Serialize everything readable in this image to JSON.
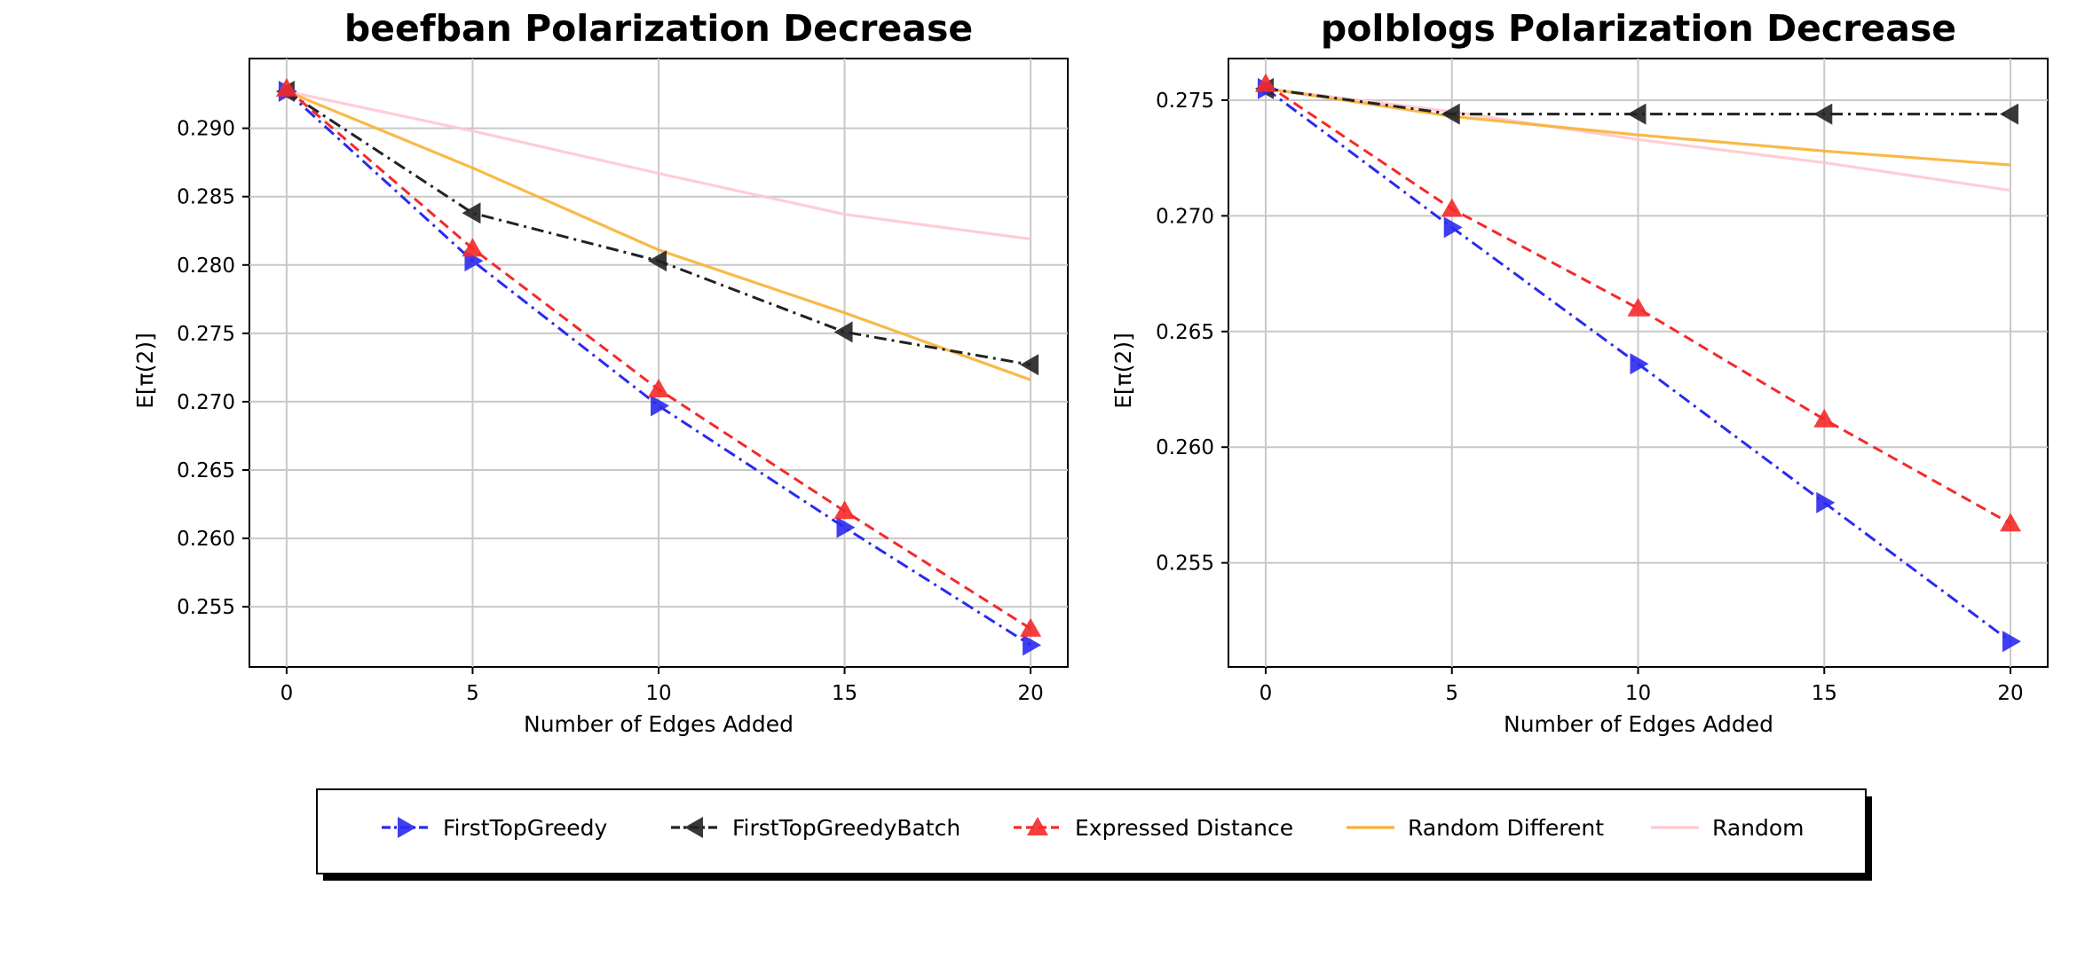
{
  "chart_data": [
    {
      "type": "line",
      "title": "beefban Polarization Decrease",
      "xlabel": "Number of Edges Added",
      "ylabel": "E[π(2)]",
      "xlim": [
        -1,
        21
      ],
      "ylim": [
        0.2506,
        0.2951
      ],
      "xticks": [
        0,
        5,
        10,
        15,
        20
      ],
      "yticks": [
        0.255,
        0.26,
        0.265,
        0.27,
        0.275,
        0.28,
        0.285,
        0.29
      ],
      "ytick_labels": [
        "0.255",
        "0.260",
        "0.265",
        "0.270",
        "0.275",
        "0.280",
        "0.285",
        "0.290"
      ],
      "grid": true,
      "series": [
        {
          "name": "Random",
          "x": [
            0,
            5,
            10,
            15,
            20
          ],
          "values": [
            0.2927,
            0.2898,
            0.2867,
            0.2837,
            0.2819
          ]
        },
        {
          "name": "Random Different",
          "x": [
            0,
            5,
            10,
            15,
            20
          ],
          "values": [
            0.2927,
            0.2871,
            0.2811,
            0.2765,
            0.2716
          ]
        },
        {
          "name": "FirstTopGreedyBatch",
          "x": [
            0,
            5,
            10,
            15,
            20
          ],
          "values": [
            0.2927,
            0.2838,
            0.2803,
            0.2751,
            0.2727
          ]
        },
        {
          "name": "FirstTopGreedy",
          "x": [
            0,
            5,
            10,
            15,
            20
          ],
          "values": [
            0.2927,
            0.2803,
            0.2697,
            0.2608,
            0.2522
          ]
        },
        {
          "name": "Expressed Distance",
          "x": [
            0,
            5,
            10,
            15,
            20
          ],
          "values": [
            0.2929,
            0.2812,
            0.2709,
            0.262,
            0.2534
          ]
        }
      ]
    },
    {
      "type": "line",
      "title": "polblogs Polarization Decrease",
      "xlabel": "Number of Edges Added",
      "ylabel": "E[π(2)]",
      "xlim": [
        -1,
        21
      ],
      "ylim": [
        0.2505,
        0.2768
      ],
      "xticks": [
        0,
        5,
        10,
        15,
        20
      ],
      "yticks": [
        0.255,
        0.26,
        0.265,
        0.27,
        0.275
      ],
      "ytick_labels": [
        "0.255",
        "0.260",
        "0.265",
        "0.270",
        "0.275"
      ],
      "grid": true,
      "series": [
        {
          "name": "Random",
          "x": [
            0,
            5,
            10,
            15,
            20
          ],
          "values": [
            0.2755,
            0.2745,
            0.2733,
            0.2723,
            0.2711
          ]
        },
        {
          "name": "Random Different",
          "x": [
            0,
            5,
            10,
            15,
            20
          ],
          "values": [
            0.2755,
            0.2743,
            0.2735,
            0.2728,
            0.2722
          ]
        },
        {
          "name": "FirstTopGreedyBatch",
          "x": [
            0,
            5,
            10,
            15,
            20
          ],
          "values": [
            0.2755,
            0.2744,
            0.2744,
            0.2744,
            0.2744
          ]
        },
        {
          "name": "FirstTopGreedy",
          "x": [
            0,
            5,
            10,
            15,
            20
          ],
          "values": [
            0.2755,
            0.2695,
            0.2636,
            0.2576,
            0.2516
          ]
        },
        {
          "name": "Expressed Distance",
          "x": [
            0,
            5,
            10,
            15,
            20
          ],
          "values": [
            0.2757,
            0.2703,
            0.266,
            0.2612,
            0.2567
          ]
        }
      ]
    }
  ],
  "legend": {
    "placement": "bottom",
    "items": [
      {
        "label": "FirstTopGreedy",
        "color": "#2a2af0",
        "linestyle": "dashdot",
        "marker": "triangle-right"
      },
      {
        "label": "FirstTopGreedyBatch",
        "color": "#222222",
        "linestyle": "dashdot",
        "marker": "triangle-left"
      },
      {
        "label": "Expressed Distance",
        "color": "#f42a2a",
        "linestyle": "dashed",
        "marker": "triangle-up"
      },
      {
        "label": "Random Different",
        "color": "#f8b134",
        "linestyle": "solid",
        "marker": "none"
      },
      {
        "label": "Random",
        "color": "#ffc8d0",
        "linestyle": "solid",
        "marker": "none"
      }
    ]
  }
}
